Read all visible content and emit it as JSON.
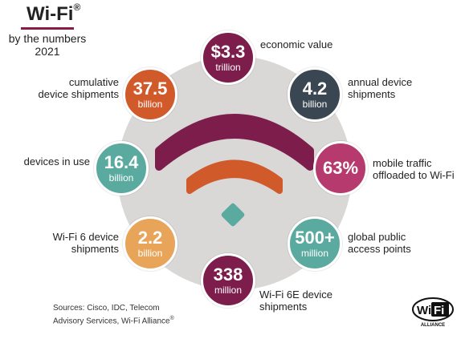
{
  "header": {
    "title": "Wi-Fi",
    "registered_mark": "®",
    "subtitle_line1": "by the numbers",
    "subtitle_line2": "2021"
  },
  "stats": {
    "economic_value": {
      "value": "$3.3",
      "unit": "trillion",
      "label": "economic value",
      "color": "#7d1d4c"
    },
    "annual_shipments": {
      "value": "4.2",
      "unit": "billion",
      "label": "annual device shipments",
      "color": "#3a4753"
    },
    "mobile_offload": {
      "value": "63%",
      "unit": "",
      "label": "mobile traffic offloaded to Wi-Fi",
      "color": "#b63a6e"
    },
    "public_access": {
      "value": "500+",
      "unit": "million",
      "label": "global public access points",
      "color": "#5aaa9f"
    },
    "wifi6e_shipments": {
      "value": "338",
      "unit": "million",
      "label": "Wi-Fi 6E device shipments",
      "color": "#7d1d4c"
    },
    "wifi6_shipments": {
      "value": "2.2",
      "unit": "billion",
      "label": "Wi-Fi 6 device shipments",
      "color": "#e8a55a"
    },
    "devices_in_use": {
      "value": "16.4",
      "unit": "billion",
      "label": "devices in use",
      "color": "#5aaa9f"
    },
    "cumulative_shipments": {
      "value": "37.5",
      "unit": "billion",
      "label": "cumulative device shipments",
      "color": "#d15a2b"
    }
  },
  "labels": {
    "economic_value": "economic value",
    "annual_l1": "annual device",
    "annual_l2": "shipments",
    "mobile_l1": "mobile traffic",
    "mobile_l2": "offloaded to Wi-Fi",
    "public_l1": "global public",
    "public_l2": "access points",
    "wifi6e_l1": "Wi-Fi 6E device",
    "wifi6e_l2": "shipments",
    "wifi6_l1": "Wi-Fi 6 device",
    "wifi6_l2": "shipments",
    "devices_in_use": "devices in use",
    "cumulative_l1": "cumulative",
    "cumulative_l2": "device shipments"
  },
  "sources": {
    "line1": "Sources: Cisco, IDC, Telecom",
    "line2": "Advisory Services, Wi-Fi Alliance",
    "registered_mark": "®"
  },
  "badge": {
    "logo_text": "WiFi",
    "alliance_text": "ALLIANCE"
  },
  "colors": {
    "disc": "#d9d8d7",
    "arc_outer": "#7d1d4c",
    "arc_inner": "#d15a2b",
    "dot": "#5aaa9f",
    "title_rule": "#8b1a4b"
  }
}
